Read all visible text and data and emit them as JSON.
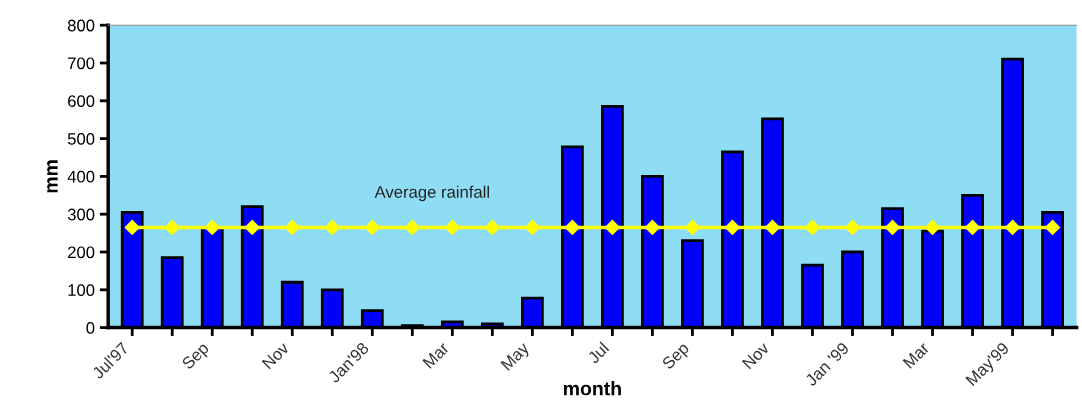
{
  "chart_data": {
    "type": "bar",
    "xlabel": "month",
    "ylabel": "mm",
    "categories": [
      "Jul'97",
      null,
      "Sep",
      null,
      "Nov",
      null,
      "Jan'98",
      null,
      "Mar",
      null,
      "May",
      null,
      "Jul",
      null,
      "Sep",
      null,
      "Nov",
      null,
      "Jan '99",
      null,
      "Mar",
      null,
      "May'99",
      null
    ],
    "series": [
      {
        "color": "#0000ff",
        "values": [
          305,
          185,
          265,
          320,
          120,
          100,
          45,
          5,
          15,
          10,
          78,
          478,
          585,
          400,
          230,
          465,
          552,
          165,
          200,
          315,
          255,
          350,
          710,
          305
        ]
      },
      {
        "type": "line",
        "name": "Average rainfall",
        "color": "#ffff00",
        "values": [
          265,
          265,
          265,
          265,
          265,
          265,
          265,
          265,
          265,
          265,
          265,
          265,
          265,
          265,
          265,
          265,
          265,
          265,
          265,
          265,
          265,
          265,
          265,
          265
        ]
      }
    ],
    "ylim": [
      0,
      800
    ],
    "yticks": [
      0,
      100,
      200,
      300,
      400,
      500,
      600,
      700,
      800
    ],
    "marker": "diamond",
    "grid": false,
    "legend": false
  }
}
